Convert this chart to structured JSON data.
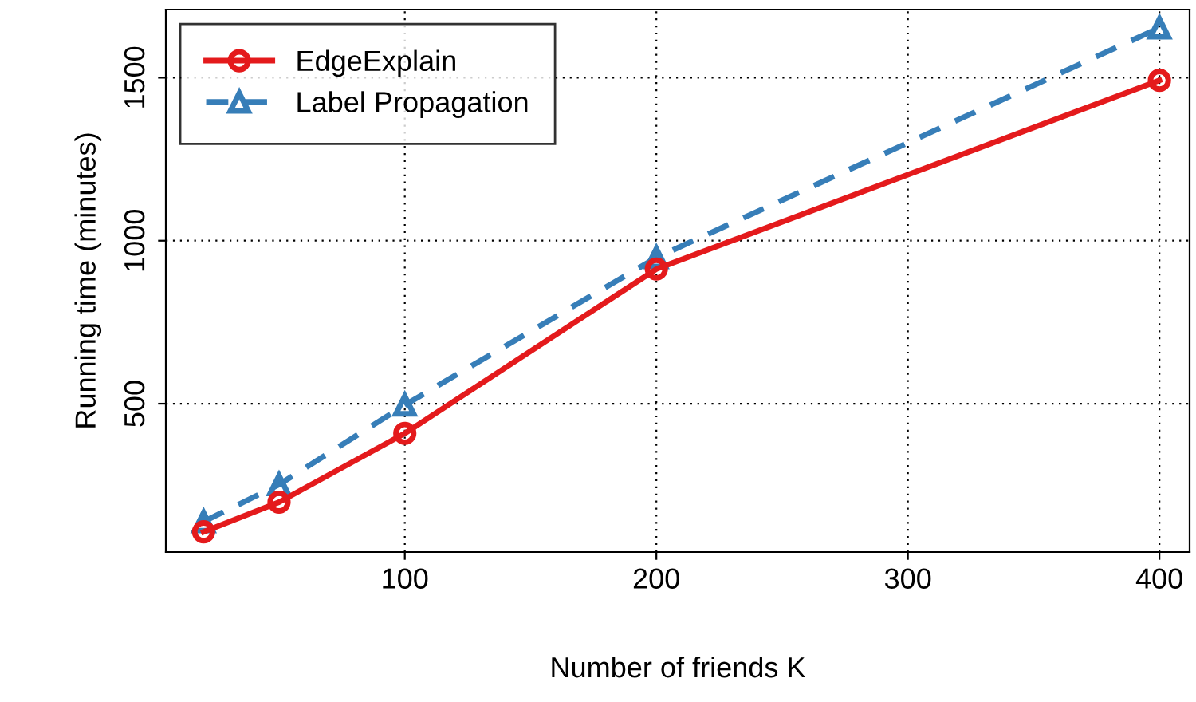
{
  "chart_data": {
    "type": "line",
    "xlabel": "Number of friends K",
    "ylabel": "Running time (minutes)",
    "x": [
      20,
      50,
      100,
      200,
      400
    ],
    "series": [
      {
        "name": "EdgeExplain",
        "color": "#e41a1c",
        "values": [
          107,
          198,
          409,
          913,
          1492
        ],
        "marker": "circle",
        "line_style": "solid"
      },
      {
        "name": "Label Propagation",
        "color": "#377eb8",
        "values": [
          138,
          252,
          496,
          948,
          1653
        ],
        "marker": "triangle",
        "line_style": "dashed"
      }
    ],
    "xlim": [
      5,
      412
    ],
    "ylim": [
      45,
      1709
    ],
    "xticks": [
      100,
      200,
      300,
      400
    ],
    "yticks": [
      500,
      1000,
      1500
    ],
    "grid": true,
    "legend": "top left"
  }
}
